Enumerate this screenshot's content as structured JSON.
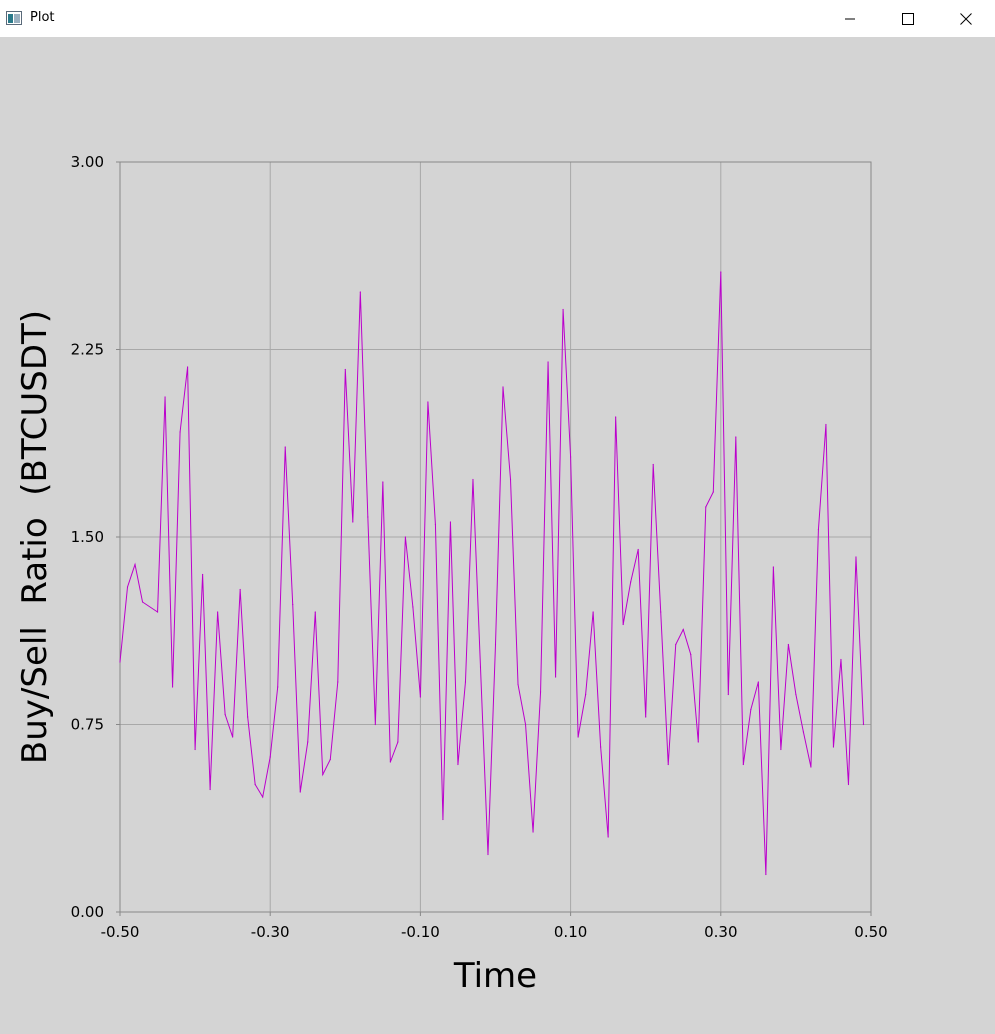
{
  "window": {
    "title": "Plot",
    "minimize_icon": "minimize-icon",
    "maximize_icon": "maximize-icon",
    "close_icon": "close-icon"
  },
  "chart_data": {
    "type": "line",
    "title": "",
    "xlabel": "Time",
    "ylabel": "Buy/Sell  Ratio  (BTCUSDT)",
    "xlim": [
      -0.5,
      0.5
    ],
    "ylim": [
      0,
      3
    ],
    "xticks": [
      -0.5,
      -0.3,
      -0.1,
      0.1,
      0.3,
      0.5
    ],
    "xtick_labels": [
      "-0.50",
      "-0.30",
      "-0.10",
      "0.10",
      "0.30",
      "0.50"
    ],
    "yticks": [
      0,
      0.75,
      1.5,
      2.25,
      3.0
    ],
    "ytick_labels": [
      "0.00",
      "0.75",
      "1.50",
      "2.25",
      "3.00"
    ],
    "grid": true,
    "colors": {
      "line": "#bb00cc",
      "grid": "#a8a8a8",
      "axis": "#888888",
      "background": "#d4d4d4"
    },
    "series": [
      {
        "values": [
          [
            -0.5,
            1.0
          ],
          [
            -0.49,
            1.3
          ],
          [
            -0.48,
            1.39
          ],
          [
            -0.47,
            1.24
          ],
          [
            -0.45,
            1.2
          ],
          [
            -0.44,
            2.06
          ],
          [
            -0.43,
            0.9
          ],
          [
            -0.42,
            1.92
          ],
          [
            -0.41,
            2.18
          ],
          [
            -0.4,
            0.65
          ],
          [
            -0.39,
            1.35
          ],
          [
            -0.38,
            0.49
          ],
          [
            -0.37,
            1.2
          ],
          [
            -0.36,
            0.79
          ],
          [
            -0.35,
            0.7
          ],
          [
            -0.34,
            1.29
          ],
          [
            -0.33,
            0.78
          ],
          [
            -0.32,
            0.51
          ],
          [
            -0.31,
            0.46
          ],
          [
            -0.3,
            0.62
          ],
          [
            -0.29,
            0.9
          ],
          [
            -0.28,
            1.86
          ],
          [
            -0.27,
            1.23
          ],
          [
            -0.26,
            0.48
          ],
          [
            -0.25,
            0.68
          ],
          [
            -0.24,
            1.2
          ],
          [
            -0.23,
            0.55
          ],
          [
            -0.22,
            0.61
          ],
          [
            -0.21,
            0.92
          ],
          [
            -0.2,
            2.17
          ],
          [
            -0.19,
            1.56
          ],
          [
            -0.18,
            2.48
          ],
          [
            -0.17,
            1.58
          ],
          [
            -0.16,
            0.75
          ],
          [
            -0.15,
            1.72
          ],
          [
            -0.14,
            0.6
          ],
          [
            -0.13,
            0.68
          ],
          [
            -0.12,
            1.5
          ],
          [
            -0.11,
            1.22
          ],
          [
            -0.1,
            0.86
          ],
          [
            -0.09,
            2.04
          ],
          [
            -0.08,
            1.55
          ],
          [
            -0.07,
            0.37
          ],
          [
            -0.06,
            1.56
          ],
          [
            -0.05,
            0.59
          ],
          [
            -0.04,
            0.92
          ],
          [
            -0.03,
            1.73
          ],
          [
            -0.02,
            0.98
          ],
          [
            -0.01,
            0.23
          ],
          [
            0.0,
            1.07
          ],
          [
            0.01,
            2.1
          ],
          [
            0.02,
            1.73
          ],
          [
            0.03,
            0.91
          ],
          [
            0.04,
            0.75
          ],
          [
            0.05,
            0.32
          ],
          [
            0.06,
            0.88
          ],
          [
            0.07,
            2.2
          ],
          [
            0.08,
            0.94
          ],
          [
            0.09,
            2.41
          ],
          [
            0.1,
            1.82
          ],
          [
            0.11,
            0.7
          ],
          [
            0.12,
            0.87
          ],
          [
            0.13,
            1.2
          ],
          [
            0.14,
            0.66
          ],
          [
            0.15,
            0.3
          ],
          [
            0.16,
            1.98
          ],
          [
            0.17,
            1.15
          ],
          [
            0.18,
            1.32
          ],
          [
            0.19,
            1.45
          ],
          [
            0.2,
            0.78
          ],
          [
            0.21,
            1.79
          ],
          [
            0.22,
            1.2
          ],
          [
            0.23,
            0.59
          ],
          [
            0.24,
            1.07
          ],
          [
            0.25,
            1.13
          ],
          [
            0.26,
            1.03
          ],
          [
            0.27,
            0.68
          ],
          [
            0.28,
            1.62
          ],
          [
            0.29,
            1.68
          ],
          [
            0.3,
            2.56
          ],
          [
            0.31,
            0.87
          ],
          [
            0.32,
            1.9
          ],
          [
            0.33,
            0.59
          ],
          [
            0.34,
            0.81
          ],
          [
            0.35,
            0.92
          ],
          [
            0.36,
            0.15
          ],
          [
            0.37,
            1.38
          ],
          [
            0.38,
            0.65
          ],
          [
            0.39,
            1.07
          ],
          [
            0.4,
            0.87
          ],
          [
            0.41,
            0.72
          ],
          [
            0.42,
            0.58
          ],
          [
            0.43,
            1.53
          ],
          [
            0.44,
            1.95
          ],
          [
            0.45,
            0.66
          ],
          [
            0.46,
            1.01
          ],
          [
            0.47,
            0.51
          ],
          [
            0.48,
            1.42
          ],
          [
            0.49,
            0.75
          ]
        ]
      }
    ]
  }
}
